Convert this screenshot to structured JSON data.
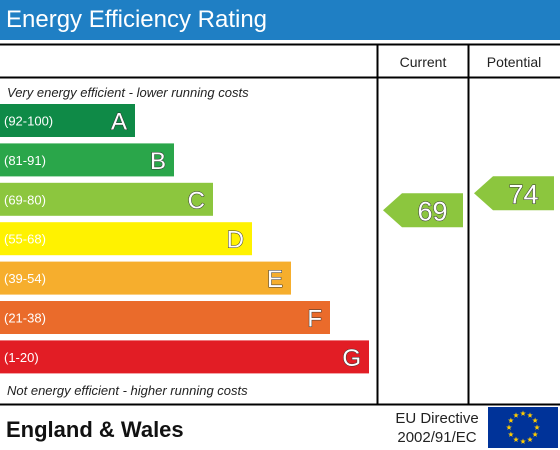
{
  "title": "Energy Efficiency Rating",
  "columns": {
    "current": "Current",
    "potential": "Potential"
  },
  "notes": {
    "top": "Very energy efficient - lower running costs",
    "bottom": "Not energy efficient - higher running costs"
  },
  "footer": {
    "region": "England & Wales",
    "directive_line1": "EU Directive",
    "directive_line2": "2002/91/EC",
    "flag_icon": "eu-flag-icon"
  },
  "chart_data": {
    "type": "bar",
    "categories": [
      "A",
      "B",
      "C",
      "D",
      "E",
      "F",
      "G"
    ],
    "ranges": [
      "(92-100)",
      "(81-91)",
      "(69-80)",
      "(55-68)",
      "(39-54)",
      "(21-38)",
      "(1-20)"
    ],
    "colors": [
      "#0f8a47",
      "#2aa64a",
      "#8cc63e",
      "#fff200",
      "#f6ae2d",
      "#ea6b2b",
      "#e21d25"
    ],
    "current": {
      "value": 69,
      "band": "C"
    },
    "potential": {
      "value": 74,
      "band": "C"
    }
  }
}
